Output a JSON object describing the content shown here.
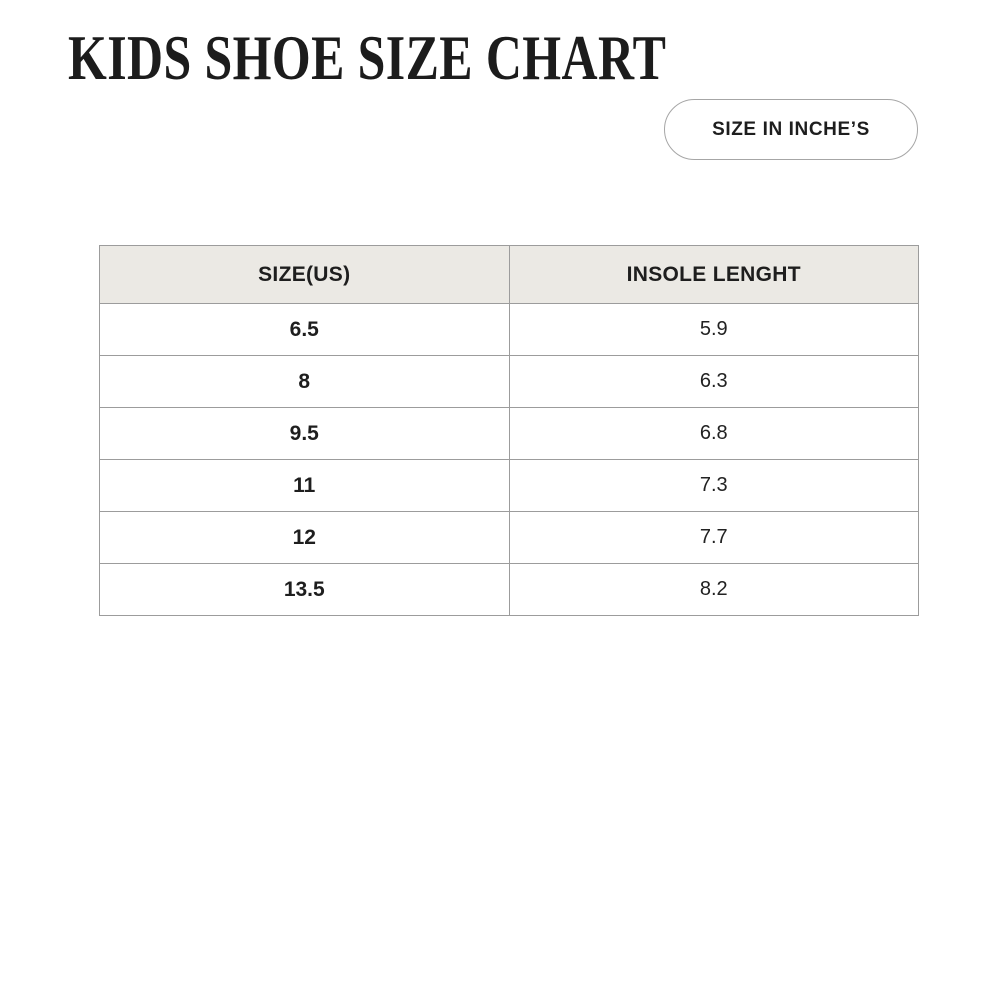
{
  "page": {
    "title": "KIDS SHOE SIZE CHART"
  },
  "unit_badge": {
    "label": "SIZE IN INCHE’S"
  },
  "chart_data": {
    "type": "table",
    "title": "KIDS SHOE SIZE CHART",
    "unit": "inches",
    "columns": [
      "SIZE(US)",
      "INSOLE LENGHT"
    ],
    "rows": [
      [
        "6.5",
        "5.9"
      ],
      [
        "8",
        "6.3"
      ],
      [
        "9.5",
        "6.8"
      ],
      [
        "11",
        "7.3"
      ],
      [
        "12",
        "7.7"
      ],
      [
        "13.5",
        "8.2"
      ]
    ]
  },
  "colors": {
    "background": "#ffffff",
    "header_bg": "#ebe9e4",
    "table_border": "#9c9c9c",
    "text": "#1e1e1e",
    "pill_border": "#a6a6a6"
  }
}
